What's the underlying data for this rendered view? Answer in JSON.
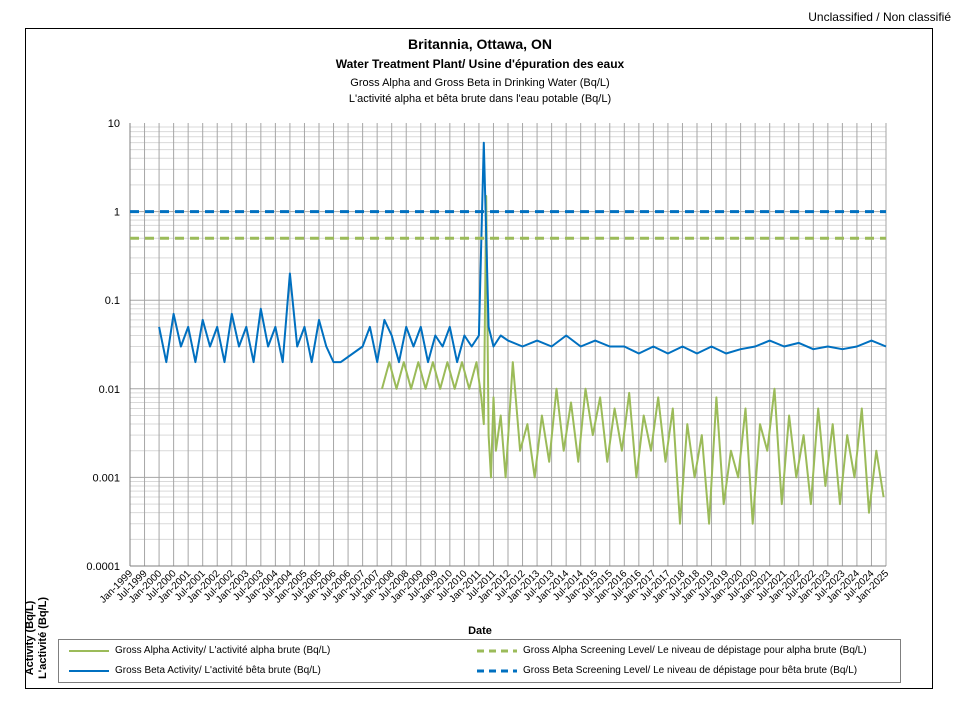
{
  "header": {
    "classification": "Unclassified / Non classifié"
  },
  "chart_data": {
    "type": "line",
    "title": "Britannia, Ottawa, ON",
    "subtitle": "Water Treatment Plant/ Usine d'épuration des eaux",
    "subtitle2": "Gross Alpha and Gross Beta in Drinking Water (Bq/L)",
    "subtitle3": "L'activité alpha et bêta brute dans l'eau potable (Bq/L)",
    "ylabel_en": "Activity (Bq/L)",
    "ylabel_fr": "L'activité (Bq/L)",
    "xlabel": "Date",
    "y_scale": "log",
    "ylim": [
      0.0001,
      10
    ],
    "y_ticks": [
      "10",
      "1",
      "0.1",
      "0.01",
      "0.001",
      "0.0001"
    ],
    "x_ticks": [
      "Jan-1999",
      "Jul-1999",
      "Jan-2000",
      "Jul-2000",
      "Jan-2001",
      "Jul-2001",
      "Jan-2002",
      "Jul-2002",
      "Jan-2003",
      "Jul-2003",
      "Jan-2004",
      "Jul-2004",
      "Jan-2005",
      "Jul-2005",
      "Jan-2006",
      "Jul-2006",
      "Jan-2007",
      "Jul-2007",
      "Jan-2008",
      "Jul-2008",
      "Jan-2009",
      "Jul-2009",
      "Jan-2010",
      "Jul-2010",
      "Jan-2011",
      "Jul-2011",
      "Jan-2012",
      "Jul-2012",
      "Jan-2013",
      "Jul-2013",
      "Jan-2014",
      "Jul-2014",
      "Jan-2015",
      "Jul-2015",
      "Jan-2016",
      "Jul-2016",
      "Jan-2017",
      "Jul-2017",
      "Jan-2018",
      "Jul-2018",
      "Jan-2019",
      "Jul-2019",
      "Jan-2020",
      "Jul-2020",
      "Jan-2021",
      "Jul-2021",
      "Jan-2022",
      "Jul-2022",
      "Jan-2023",
      "Jul-2023",
      "Jan-2024",
      "Jul-2024",
      "Jan-2025"
    ],
    "grid": true,
    "legend_position": "bottom",
    "series": [
      {
        "name": "Gross Alpha Activity/ L'activité alpha brute (Bq/L)",
        "color": "#9bbb59",
        "style": "solid",
        "x": [
          "2007-09",
          "2007-12",
          "2008-03",
          "2008-06",
          "2008-09",
          "2008-12",
          "2009-03",
          "2009-06",
          "2009-09",
          "2009-12",
          "2010-03",
          "2010-06",
          "2010-09",
          "2010-12",
          "2011-02",
          "2011-03",
          "2011-04",
          "2011-05",
          "2011-06",
          "2011-07",
          "2011-08",
          "2011-10",
          "2011-12",
          "2012-03",
          "2012-06",
          "2012-09",
          "2012-12",
          "2013-03",
          "2013-06",
          "2013-09",
          "2013-12",
          "2014-03",
          "2014-06",
          "2014-09",
          "2014-12",
          "2015-03",
          "2015-06",
          "2015-09",
          "2015-12",
          "2016-03",
          "2016-06",
          "2016-09",
          "2016-12",
          "2017-03",
          "2017-06",
          "2017-09",
          "2017-12",
          "2018-03",
          "2018-06",
          "2018-09",
          "2018-12",
          "2019-03",
          "2019-06",
          "2019-09",
          "2019-12",
          "2020-03",
          "2020-06",
          "2020-09",
          "2020-12",
          "2021-03",
          "2021-06",
          "2021-09",
          "2021-12",
          "2022-03",
          "2022-06",
          "2022-09",
          "2022-12",
          "2023-03",
          "2023-06",
          "2023-09",
          "2023-12",
          "2024-03",
          "2024-06",
          "2024-09",
          "2024-12"
        ],
        "values": [
          0.01,
          0.02,
          0.01,
          0.02,
          0.01,
          0.02,
          0.01,
          0.02,
          0.01,
          0.02,
          0.01,
          0.02,
          0.01,
          0.02,
          0.008,
          0.004,
          1.5,
          0.003,
          0.001,
          0.008,
          0.002,
          0.005,
          0.001,
          0.02,
          0.002,
          0.004,
          0.001,
          0.005,
          0.0015,
          0.01,
          0.002,
          0.007,
          0.0015,
          0.01,
          0.003,
          0.008,
          0.0015,
          0.006,
          0.002,
          0.009,
          0.001,
          0.005,
          0.002,
          0.008,
          0.0015,
          0.006,
          0.0003,
          0.004,
          0.001,
          0.003,
          0.0003,
          0.008,
          0.0005,
          0.002,
          0.001,
          0.006,
          0.0003,
          0.004,
          0.002,
          0.01,
          0.0005,
          0.005,
          0.001,
          0.003,
          0.0005,
          0.006,
          0.0008,
          0.004,
          0.0005,
          0.003,
          0.001,
          0.006,
          0.0004,
          0.002,
          0.0006
        ]
      },
      {
        "name": "Gross Beta Activity/ L'activité bêta brute (Bq/L)",
        "color": "#0070c0",
        "style": "solid",
        "x": [
          "2000-01",
          "2000-04",
          "2000-07",
          "2000-10",
          "2001-01",
          "2001-04",
          "2001-07",
          "2001-10",
          "2002-01",
          "2002-04",
          "2002-07",
          "2002-10",
          "2003-01",
          "2003-04",
          "2003-07",
          "2003-10",
          "2004-01",
          "2004-04",
          "2004-07",
          "2004-10",
          "2005-01",
          "2005-04",
          "2005-07",
          "2005-10",
          "2006-01",
          "2006-04",
          "2007-01",
          "2007-04",
          "2007-07",
          "2007-10",
          "2008-01",
          "2008-04",
          "2008-07",
          "2008-10",
          "2009-01",
          "2009-04",
          "2009-07",
          "2009-10",
          "2010-01",
          "2010-04",
          "2010-07",
          "2010-10",
          "2011-01",
          "2011-03",
          "2011-05",
          "2011-07",
          "2011-10",
          "2012-01",
          "2012-07",
          "2013-01",
          "2013-07",
          "2014-01",
          "2014-07",
          "2015-01",
          "2015-07",
          "2016-01",
          "2016-07",
          "2017-01",
          "2017-07",
          "2018-01",
          "2018-07",
          "2019-01",
          "2019-07",
          "2020-01",
          "2020-07",
          "2021-01",
          "2021-07",
          "2022-01",
          "2022-07",
          "2023-01",
          "2023-07",
          "2024-01",
          "2024-07",
          "2025-01"
        ],
        "values": [
          0.05,
          0.02,
          0.07,
          0.03,
          0.05,
          0.02,
          0.06,
          0.03,
          0.05,
          0.02,
          0.07,
          0.03,
          0.05,
          0.02,
          0.08,
          0.03,
          0.05,
          0.02,
          0.2,
          0.03,
          0.05,
          0.02,
          0.06,
          0.03,
          0.02,
          0.02,
          0.03,
          0.05,
          0.02,
          0.06,
          0.04,
          0.02,
          0.05,
          0.03,
          0.05,
          0.02,
          0.04,
          0.03,
          0.05,
          0.02,
          0.04,
          0.03,
          0.04,
          6.0,
          0.05,
          0.03,
          0.04,
          0.035,
          0.03,
          0.035,
          0.03,
          0.04,
          0.03,
          0.035,
          0.03,
          0.03,
          0.025,
          0.03,
          0.025,
          0.03,
          0.025,
          0.03,
          0.025,
          0.028,
          0.03,
          0.035,
          0.03,
          0.033,
          0.028,
          0.03,
          0.028,
          0.03,
          0.035,
          0.03
        ]
      },
      {
        "name": "Gross Alpha Screening Level/ Le niveau de dépistage pour alpha brute (Bq/L)",
        "color": "#9bbb59",
        "style": "dashed",
        "x": [
          "1999-01",
          "2025-01"
        ],
        "values": [
          0.5,
          0.5
        ]
      },
      {
        "name": "Gross Beta Screening Level/ Le niveau de dépistage pour bêta brute (Bq/L)",
        "color": "#0070c0",
        "style": "dashed",
        "x": [
          "1999-01",
          "2025-01"
        ],
        "values": [
          1,
          1
        ]
      }
    ]
  }
}
